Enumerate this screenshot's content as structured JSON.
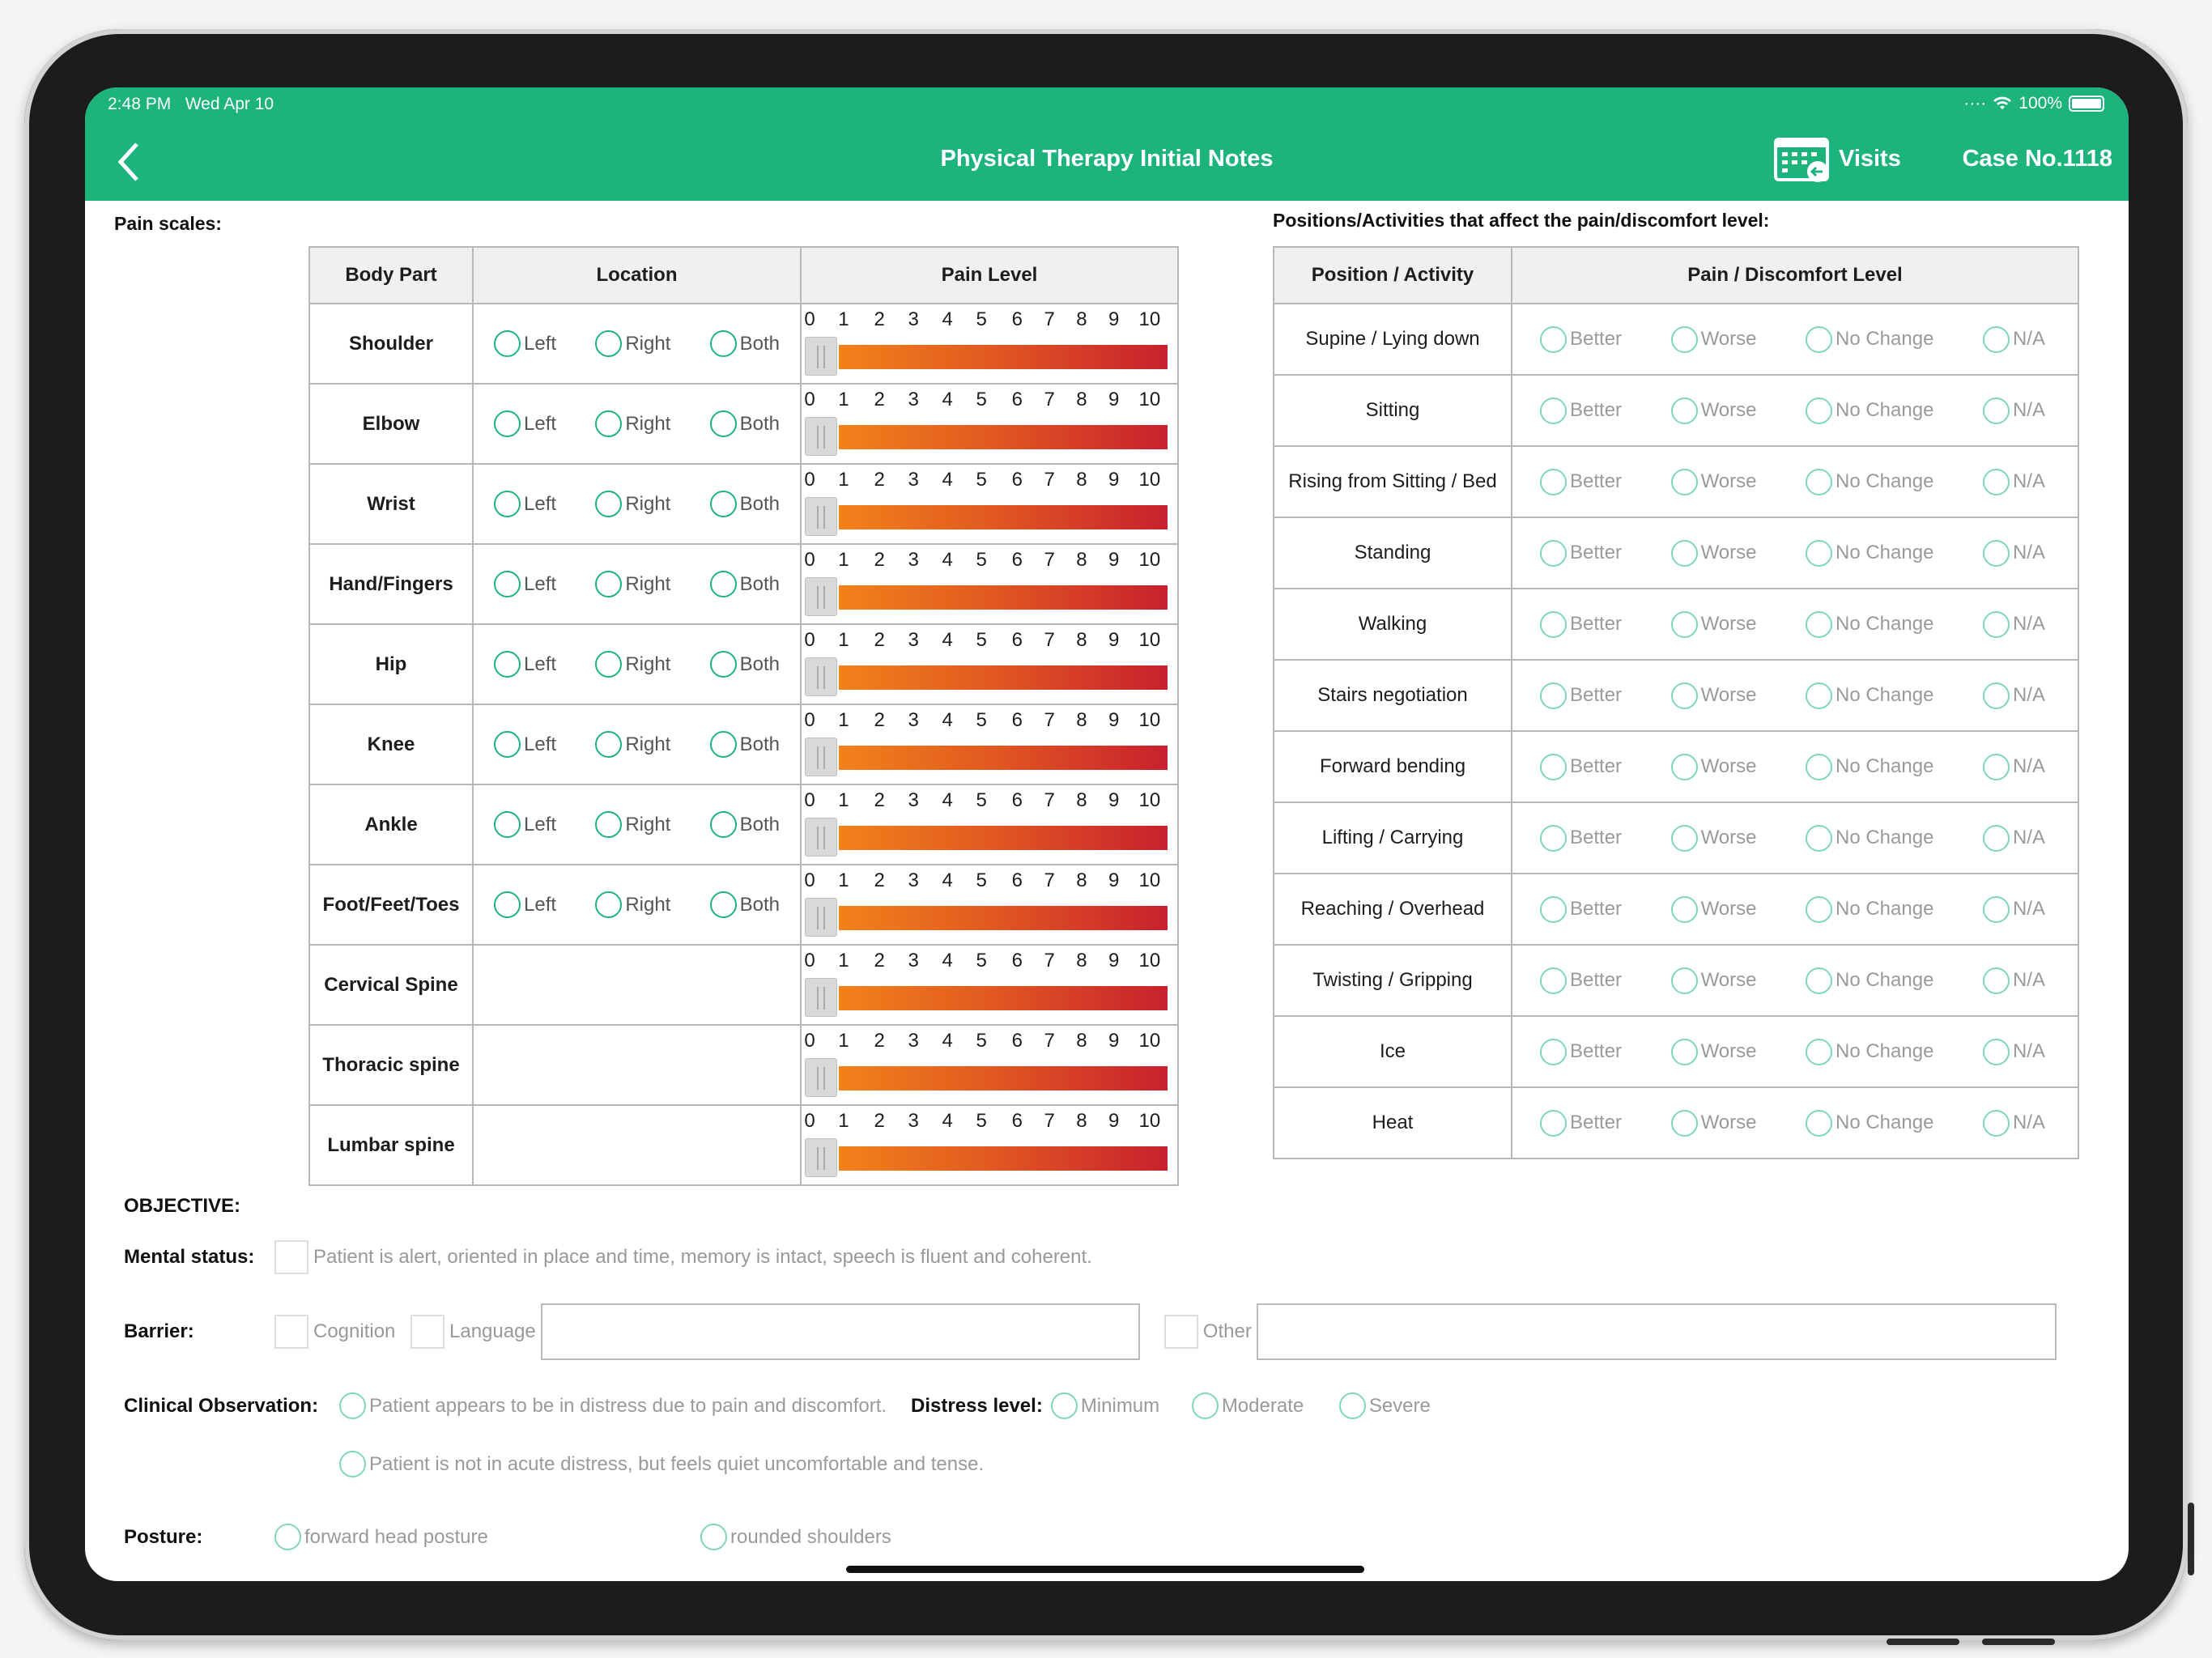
{
  "status": {
    "time": "2:48 PM",
    "date": "Wed Apr 10",
    "battery": "100%"
  },
  "nav": {
    "title": "Physical Therapy Initial Notes",
    "visits": "Visits",
    "case_no": "Case No.1118"
  },
  "pain": {
    "heading": "Pain scales:",
    "headers": [
      "Body Part",
      "Location",
      "Pain Level"
    ],
    "location_options": [
      "Left",
      "Right",
      "Both"
    ],
    "scale": [
      "0",
      "1",
      "2",
      "3",
      "4",
      "5",
      "6",
      "7",
      "8",
      "9",
      "10"
    ],
    "rows": [
      {
        "part": "Shoulder",
        "has_location": true,
        "level": 0
      },
      {
        "part": "Elbow",
        "has_location": true,
        "level": 0
      },
      {
        "part": "Wrist",
        "has_location": true,
        "level": 0
      },
      {
        "part": "Hand/Fingers",
        "has_location": true,
        "level": 0
      },
      {
        "part": "Hip",
        "has_location": true,
        "level": 0
      },
      {
        "part": "Knee",
        "has_location": true,
        "level": 0
      },
      {
        "part": "Ankle",
        "has_location": true,
        "level": 0
      },
      {
        "part": "Foot/Feet/Toes",
        "has_location": true,
        "level": 0
      },
      {
        "part": "Cervical Spine",
        "has_location": false,
        "level": 0
      },
      {
        "part": "Thoracic spine",
        "has_location": false,
        "level": 0
      },
      {
        "part": "Lumbar spine",
        "has_location": false,
        "level": 0
      }
    ]
  },
  "positions": {
    "heading": "Positions/Activities that affect the pain/discomfort level:",
    "headers": [
      "Position / Activity",
      "Pain / Discomfort Level"
    ],
    "options": [
      "Better",
      "Worse",
      "No Change",
      "N/A"
    ],
    "rows": [
      "Supine / Lying down",
      "Sitting",
      "Rising from Sitting / Bed",
      "Standing",
      "Walking",
      "Stairs negotiation",
      "Forward bending",
      "Lifting / Carrying",
      "Reaching / Overhead",
      "Twisting / Gripping",
      "Ice",
      "Heat"
    ]
  },
  "objective": {
    "heading": "OBJECTIVE:",
    "mental_status_label": "Mental status:",
    "mental_status_text": "Patient is alert, oriented in place and time, memory is intact, speech is fluent and coherent.",
    "barrier_label": "Barrier:",
    "barrier_cognition": "Cognition",
    "barrier_language": "Language",
    "barrier_other": "Other",
    "clinical_label": "Clinical Observation:",
    "clinical_opt1": "Patient appears to be in distress due to pain and discomfort.",
    "distress_label": "Distress level:",
    "distress_options": [
      "Minimum",
      "Moderate",
      "Severe"
    ],
    "clinical_opt2": "Patient is not in acute distress, but feels quiet uncomfortable and tense.",
    "posture_label": "Posture:",
    "posture_options": [
      "forward head posture",
      "rounded shoulders"
    ]
  },
  "colors": {
    "accent": "#1db37c",
    "bar_start": "#f2821a",
    "bar_end": "#c8202e"
  }
}
